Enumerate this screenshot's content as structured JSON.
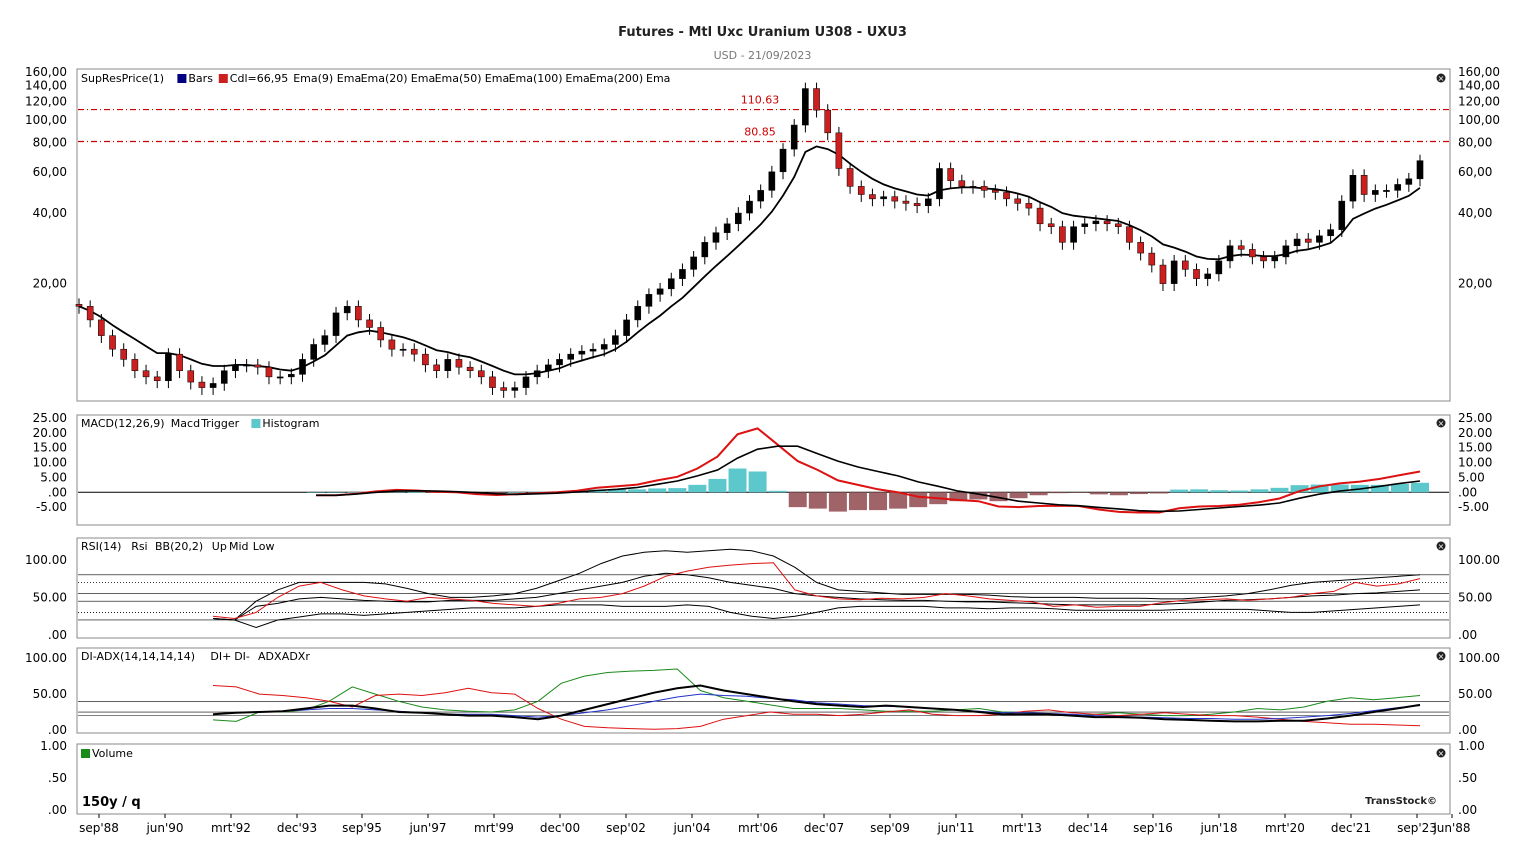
{
  "header": {
    "title": "Futures - Mtl Uxc Uranium U308 - UXU3",
    "subtitle": "USD - 21/09/2023"
  },
  "colors": {
    "bar_up": "#000000",
    "bar_down": "#cc2020",
    "ema9": "#000000",
    "ema20": "#2233cc",
    "ema50": "#dd1111",
    "ema100": "#000000",
    "ema200": "#000000",
    "macd": "#dd1111",
    "trigger": "#000000",
    "hist_pos": "#5cc8cc",
    "hist_neg": "#a06468",
    "resistance": "#cc0000",
    "adx": "#000000",
    "adxr": "#2233cc",
    "di_plus": "#1a8a1a",
    "di_minus": "#dd1111"
  },
  "footer": {
    "period": "150y / q",
    "brand": "TransStock©"
  },
  "panels": {
    "price": {
      "legend": [
        "SupResPrice(1)",
        "Bars",
        "Cdl=66,95",
        "Ema(9)",
        "Ema",
        "Ema(20)",
        "Ema",
        "Ema(50)",
        "Ema",
        "Ema(100)",
        "Ema",
        "Ema(200)",
        "Ema"
      ],
      "level_labels": [
        "110.63",
        "80.85"
      ]
    },
    "macd": {
      "legend": [
        "MACD(12,26,9)",
        "Macd",
        "Trigger",
        "Histogram"
      ]
    },
    "rsi": {
      "legend": [
        "RSI(14)",
        "Rsi",
        "BB(20,2)",
        "Up",
        "Mid",
        "Low"
      ]
    },
    "adx": {
      "legend": [
        "DI-ADX(14,14,14,14)",
        "DI+",
        "DI-",
        "ADX",
        "ADXr"
      ]
    },
    "volume": {
      "legend": [
        "Volume"
      ]
    }
  },
  "chart_data": {
    "type": "line",
    "x_tick_labels": [
      "sep'88",
      "jun'90",
      "mrt'92",
      "dec'93",
      "sep'95",
      "jun'97",
      "mrt'99",
      "dec'00",
      "sep'02",
      "jun'04",
      "mrt'06",
      "dec'07",
      "sep'09",
      "jun'11",
      "mrt'13",
      "dec'14",
      "sep'16",
      "jun'18",
      "mrt'20",
      "dec'21",
      "sep'23",
      "jun'88"
    ],
    "price_panel": {
      "scale": "log",
      "ylim": [
        6.5,
        160
      ],
      "y_tick_labels": [
        "160,00",
        "140,00",
        "120,00",
        "100,00",
        "80,00",
        "60,00",
        "40,00",
        "20,00"
      ],
      "resistance_levels": [
        110.63,
        80.85
      ],
      "candles_quarterly_close": [
        16,
        14,
        12,
        10.5,
        9.5,
        8.5,
        8,
        7.7,
        10,
        8.5,
        7.6,
        7.2,
        7.5,
        8.5,
        9,
        9,
        8.8,
        8,
        8,
        8.2,
        9.5,
        11,
        12,
        15,
        16,
        14,
        13,
        11.5,
        10.5,
        10.5,
        10,
        9,
        8.5,
        9.5,
        8.8,
        8.5,
        8,
        7.2,
        7,
        7.2,
        8,
        8.5,
        9,
        9.5,
        10,
        10.3,
        10.5,
        11,
        12,
        14,
        16,
        18,
        19,
        21,
        23,
        26,
        30,
        33,
        36,
        40,
        45,
        50,
        60,
        75,
        95,
        136,
        110,
        88,
        62,
        52,
        48,
        46,
        47,
        45,
        44,
        43,
        46,
        62,
        55,
        52,
        52,
        50,
        49,
        46,
        44,
        42,
        36,
        35,
        30,
        35,
        36,
        37,
        36,
        35,
        30,
        27,
        24,
        20,
        25,
        23,
        21,
        22,
        25,
        29,
        28,
        26,
        25,
        26,
        29,
        31,
        30,
        32,
        34,
        45,
        58,
        48,
        50,
        50,
        53,
        56,
        66.95
      ],
      "ema_9": [
        16,
        15.3,
        14.4,
        13.3,
        12.4,
        11.6,
        10.8,
        10.1,
        10.1,
        9.9,
        9.5,
        9.1,
        8.9,
        8.9,
        9,
        9,
        8.9,
        8.8,
        8.6,
        8.5,
        8.8,
        9.3,
        9.9,
        10.9,
        12,
        12.4,
        12.6,
        12.4,
        12.1,
        11.8,
        11.4,
        10.9,
        10.4,
        10.2,
        9.9,
        9.7,
        9.3,
        8.9,
        8.5,
        8.2,
        8.2,
        8.3,
        8.5,
        8.7,
        9.1,
        9.4,
        9.7,
        10,
        10.5,
        11.3,
        12.4,
        13.5,
        14.6,
        16,
        17.4,
        19.3,
        21.5,
        23.8,
        26.2,
        29,
        32.2,
        35.8,
        40.6,
        47.5,
        57,
        73,
        77,
        75,
        71,
        65,
        60,
        56,
        53,
        51,
        49.5,
        48,
        47.5,
        50,
        51,
        51.5,
        51.5,
        51,
        50.6,
        49.7,
        48.5,
        47,
        44.5,
        42.5,
        40,
        39,
        38.5,
        38,
        37.5,
        37,
        35.5,
        33.8,
        31.8,
        29.4,
        28.5,
        27.4,
        26.1,
        25.5,
        25.4,
        26.2,
        26.6,
        26.5,
        26.2,
        26.2,
        26.7,
        27.6,
        28,
        28.8,
        29.8,
        32.8,
        37.8,
        39.8,
        41.8,
        43.4,
        45.3,
        47.4,
        51.3
      ]
    },
    "macd_panel": {
      "ylim": [
        -10,
        25
      ],
      "y_tick_labels": [
        "25.00",
        "20.00",
        "15.00",
        "10.00",
        "5.00",
        ".00",
        "-5.00"
      ],
      "macd": [
        -1,
        -1,
        -0.5,
        0.3,
        0.8,
        0.6,
        0.2,
        0,
        -0.6,
        -0.9,
        -0.6,
        -0.3,
        0,
        0.5,
        1.5,
        2,
        2.6,
        4,
        5.2,
        8,
        12,
        19.5,
        21.5,
        16,
        10.5,
        7.5,
        4,
        2.5,
        1,
        0,
        -1.5,
        -2,
        -2.6,
        -3,
        -4.8,
        -5,
        -4.6,
        -4.5,
        -4.6,
        -5.8,
        -6.6,
        -6.8,
        -6.8,
        -5.4,
        -4.8,
        -4.6,
        -4.2,
        -3.3,
        -2.1,
        0.4,
        2,
        3,
        3.6,
        4.5,
        5.8,
        7
      ],
      "trigger": [
        -1,
        -1,
        -0.6,
        0,
        0.4,
        0.5,
        0.4,
        0.2,
        -0.1,
        -0.5,
        -0.7,
        -0.5,
        -0.3,
        0.1,
        0.6,
        1,
        1.6,
        2.7,
        3.8,
        5.5,
        7.5,
        11.5,
        14.5,
        15.5,
        15.5,
        13,
        10.5,
        8.5,
        7,
        5.5,
        3.5,
        2,
        0.4,
        -0.6,
        -1.8,
        -3,
        -3.6,
        -4.2,
        -4.5,
        -5.1,
        -5.6,
        -6.2,
        -6.4,
        -6.3,
        -5.8,
        -5.3,
        -4.8,
        -4.3,
        -3.6,
        -2,
        -0.6,
        0.4,
        1.1,
        2,
        3,
        3.8
      ]
    },
    "rsi_panel": {
      "ylim": [
        0,
        125
      ],
      "y_tick_labels": [
        "100.00",
        "50.00",
        ".00"
      ],
      "rsi": [
        25,
        22,
        30,
        50,
        65,
        70,
        60,
        52,
        48,
        45,
        50,
        48,
        46,
        42,
        40,
        38,
        42,
        48,
        50,
        55,
        65,
        78,
        85,
        90,
        93,
        95,
        96,
        60,
        52,
        48,
        47,
        49,
        48,
        50,
        55,
        52,
        48,
        46,
        44,
        38,
        40,
        37,
        38,
        38,
        43,
        46,
        47,
        48,
        46,
        48,
        50,
        55,
        58,
        70,
        65,
        68,
        75
      ],
      "bb_up": [
        22,
        20,
        45,
        60,
        70,
        70,
        70,
        70,
        68,
        62,
        55,
        50,
        50,
        52,
        55,
        62,
        72,
        82,
        95,
        105,
        110,
        112,
        110,
        112,
        114,
        112,
        105,
        90,
        70,
        60,
        58,
        56,
        54,
        54,
        54,
        54,
        53,
        51,
        50,
        50,
        50,
        49,
        49,
        49,
        48,
        48,
        50,
        52,
        55,
        60,
        66,
        70,
        72,
        74,
        76,
        78,
        80
      ],
      "bb_mid": [
        22,
        20,
        38,
        42,
        48,
        50,
        48,
        46,
        45,
        44,
        44,
        46,
        46,
        46,
        48,
        50,
        55,
        60,
        65,
        70,
        78,
        82,
        80,
        76,
        70,
        66,
        62,
        55,
        52,
        50,
        48,
        47,
        46,
        46,
        45,
        44,
        44,
        43,
        42,
        41,
        40,
        40,
        40,
        40,
        41,
        42,
        44,
        46,
        47,
        48,
        50,
        52,
        53,
        55,
        56,
        58,
        60
      ],
      "bb_low": [
        22,
        20,
        10,
        20,
        24,
        28,
        28,
        26,
        28,
        30,
        32,
        34,
        36,
        36,
        36,
        38,
        40,
        40,
        40,
        38,
        38,
        38,
        40,
        38,
        30,
        25,
        22,
        25,
        30,
        36,
        38,
        38,
        38,
        38,
        36,
        36,
        35,
        36,
        36,
        35,
        33,
        33,
        33,
        33,
        33,
        34,
        34,
        34,
        34,
        32,
        30,
        30,
        32,
        34,
        36,
        38,
        40
      ]
    },
    "adx_panel": {
      "ylim": [
        0,
        110
      ],
      "y_tick_labels": [
        "100.00",
        "50.00",
        ".00"
      ],
      "di_plus": [
        14,
        12,
        25,
        25,
        28,
        40,
        60,
        50,
        40,
        32,
        28,
        26,
        25,
        28,
        40,
        65,
        75,
        80,
        82,
        83,
        85,
        55,
        45,
        40,
        35,
        30,
        30,
        30,
        28,
        26,
        26,
        26,
        28,
        30,
        25,
        24,
        22,
        20,
        22,
        24,
        22,
        20,
        20,
        22,
        25,
        30,
        28,
        32,
        40,
        45,
        42,
        45,
        48
      ],
      "di_minus": [
        62,
        60,
        50,
        48,
        45,
        40,
        32,
        48,
        50,
        48,
        52,
        58,
        52,
        50,
        30,
        15,
        5,
        3,
        2,
        1,
        2,
        5,
        15,
        20,
        25,
        22,
        22,
        20,
        22,
        25,
        28,
        22,
        20,
        20,
        22,
        26,
        28,
        24,
        22,
        20,
        22,
        24,
        22,
        20,
        20,
        18,
        15,
        12,
        10,
        8,
        8,
        7,
        6
      ],
      "adx": [
        22,
        24,
        25,
        26,
        30,
        34,
        34,
        30,
        25,
        24,
        22,
        20,
        20,
        18,
        15,
        20,
        28,
        36,
        44,
        52,
        58,
        62,
        55,
        50,
        45,
        40,
        36,
        34,
        32,
        34,
        32,
        30,
        28,
        25,
        22,
        22,
        22,
        20,
        18,
        18,
        17,
        15,
        14,
        13,
        12,
        12,
        13,
        13,
        16,
        20,
        25,
        30,
        35
      ],
      "adxr": [
        22,
        24,
        25,
        26,
        28,
        30,
        30,
        28,
        26,
        24,
        22,
        22,
        22,
        20,
        18,
        20,
        24,
        28,
        34,
        40,
        46,
        50,
        48,
        47,
        44,
        42,
        38,
        36,
        34,
        33,
        32,
        30,
        28,
        26,
        24,
        24,
        23,
        22,
        20,
        19,
        18,
        17,
        16,
        16,
        15,
        15,
        16,
        18,
        20,
        23,
        27,
        31,
        34
      ]
    },
    "volume_panel": {
      "ylim": [
        0,
        1
      ],
      "y_tick_labels": [
        "1.00",
        ".50",
        ".00"
      ]
    }
  }
}
